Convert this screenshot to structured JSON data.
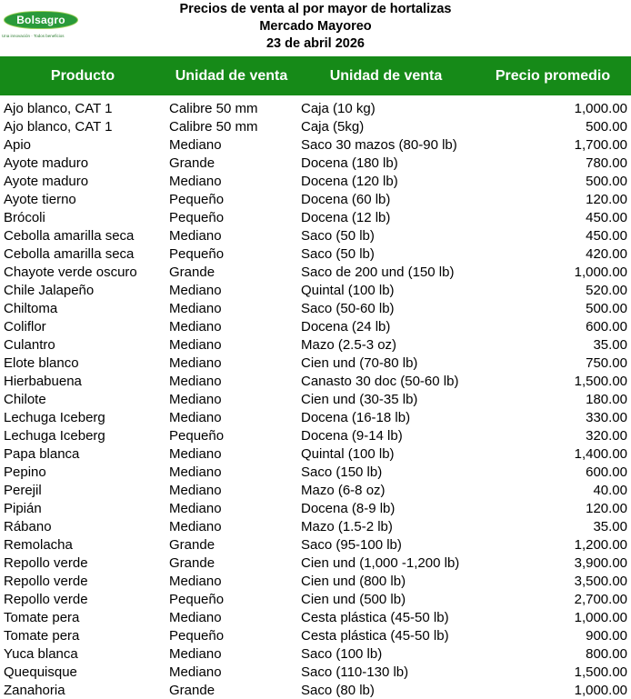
{
  "logo": {
    "name": "Bolsagro",
    "tagline": "Una innovación · Todos beneficios"
  },
  "title": {
    "line1": "Precios de venta al por mayor de hortalizas",
    "line2": "Mercado Mayoreo",
    "line3": "23 de abril 2026"
  },
  "columns": [
    "Producto",
    "Unidad de venta",
    "Unidad de venta",
    "Precio promedio"
  ],
  "colors": {
    "header_bg": "#168a18",
    "header_text": "#ffffff",
    "logo_green": "#2a9a3a"
  },
  "rows": [
    [
      "Ajo blanco, CAT 1",
      "Calibre 50 mm",
      "Caja (10 kg)",
      "1,000.00"
    ],
    [
      "Ajo blanco, CAT 1",
      "Calibre 50 mm",
      "Caja (5kg)",
      "500.00"
    ],
    [
      "Apio",
      "Mediano",
      "Saco 30 mazos  (80-90 lb)",
      "1,700.00"
    ],
    [
      "Ayote maduro",
      "Grande",
      "Docena (180 lb)",
      "780.00"
    ],
    [
      "Ayote maduro",
      "Mediano",
      "Docena (120 lb)",
      "500.00"
    ],
    [
      "Ayote tierno",
      "Pequeño",
      "Docena  (60 lb)",
      "120.00"
    ],
    [
      "Brócoli",
      "Pequeño",
      "Docena (12 lb)",
      "450.00"
    ],
    [
      "Cebolla amarilla seca",
      "Mediano",
      "Saco (50 lb)",
      "450.00"
    ],
    [
      "Cebolla amarilla seca",
      "Pequeño",
      "Saco (50 lb)",
      "420.00"
    ],
    [
      "Chayote verde oscuro",
      "Grande",
      "Saco de 200 und (150 lb)",
      "1,000.00"
    ],
    [
      "Chile Jalapeño",
      "Mediano",
      "Quintal (100 lb)",
      "520.00"
    ],
    [
      "Chiltoma",
      "Mediano",
      "Saco (50-60 lb)",
      "500.00"
    ],
    [
      "Coliflor",
      "Mediano",
      "Docena (24 lb)",
      "600.00"
    ],
    [
      "Culantro",
      "Mediano",
      "Mazo (2.5-3 oz)",
      "35.00"
    ],
    [
      "Elote blanco",
      "Mediano",
      "Cien und (70-80 lb)",
      "750.00"
    ],
    [
      "Hierbabuena",
      "Mediano",
      "Canasto 30 doc (50-60 lb)",
      "1,500.00"
    ],
    [
      "Chilote",
      "Mediano",
      "Cien und (30-35 lb)",
      "180.00"
    ],
    [
      "Lechuga Iceberg",
      "Mediano",
      "Docena (16-18 lb)",
      "330.00"
    ],
    [
      "Lechuga Iceberg",
      "Pequeño",
      "Docena (9-14 lb)",
      "320.00"
    ],
    [
      "Papa blanca",
      "Mediano",
      "Quintal (100 lb)",
      "1,400.00"
    ],
    [
      "Pepino",
      "Mediano",
      "Saco (150 lb)",
      "600.00"
    ],
    [
      "Perejil",
      "Mediano",
      "Mazo (6-8 oz)",
      "40.00"
    ],
    [
      "Pipián",
      "Mediano",
      "Docena (8-9 lb)",
      "120.00"
    ],
    [
      "Rábano",
      "Mediano",
      "Mazo (1.5-2 lb)",
      "35.00"
    ],
    [
      "Remolacha",
      "Grande",
      "Saco (95-100 lb)",
      "1,200.00"
    ],
    [
      "Repollo verde",
      "Grande",
      "Cien und (1,000 -1,200 lb)",
      "3,900.00"
    ],
    [
      "Repollo verde",
      "Mediano",
      "Cien und (800 lb)",
      "3,500.00"
    ],
    [
      "Repollo verde",
      "Pequeño",
      "Cien und (500 lb)",
      "2,700.00"
    ],
    [
      "Tomate pera",
      "Mediano",
      "Cesta plástica (45-50 lb)",
      "1,000.00"
    ],
    [
      "Tomate pera",
      "Pequeño",
      "Cesta plástica (45-50 lb)",
      "900.00"
    ],
    [
      "Yuca blanca",
      "Mediano",
      "Saco (100 lb)",
      "800.00"
    ],
    [
      "Quequisque",
      "Mediano",
      "Saco (110-130 lb)",
      "1,500.00"
    ],
    [
      "Zanahoria",
      "Grande",
      "Saco (80 lb)",
      "1,000.00"
    ]
  ]
}
